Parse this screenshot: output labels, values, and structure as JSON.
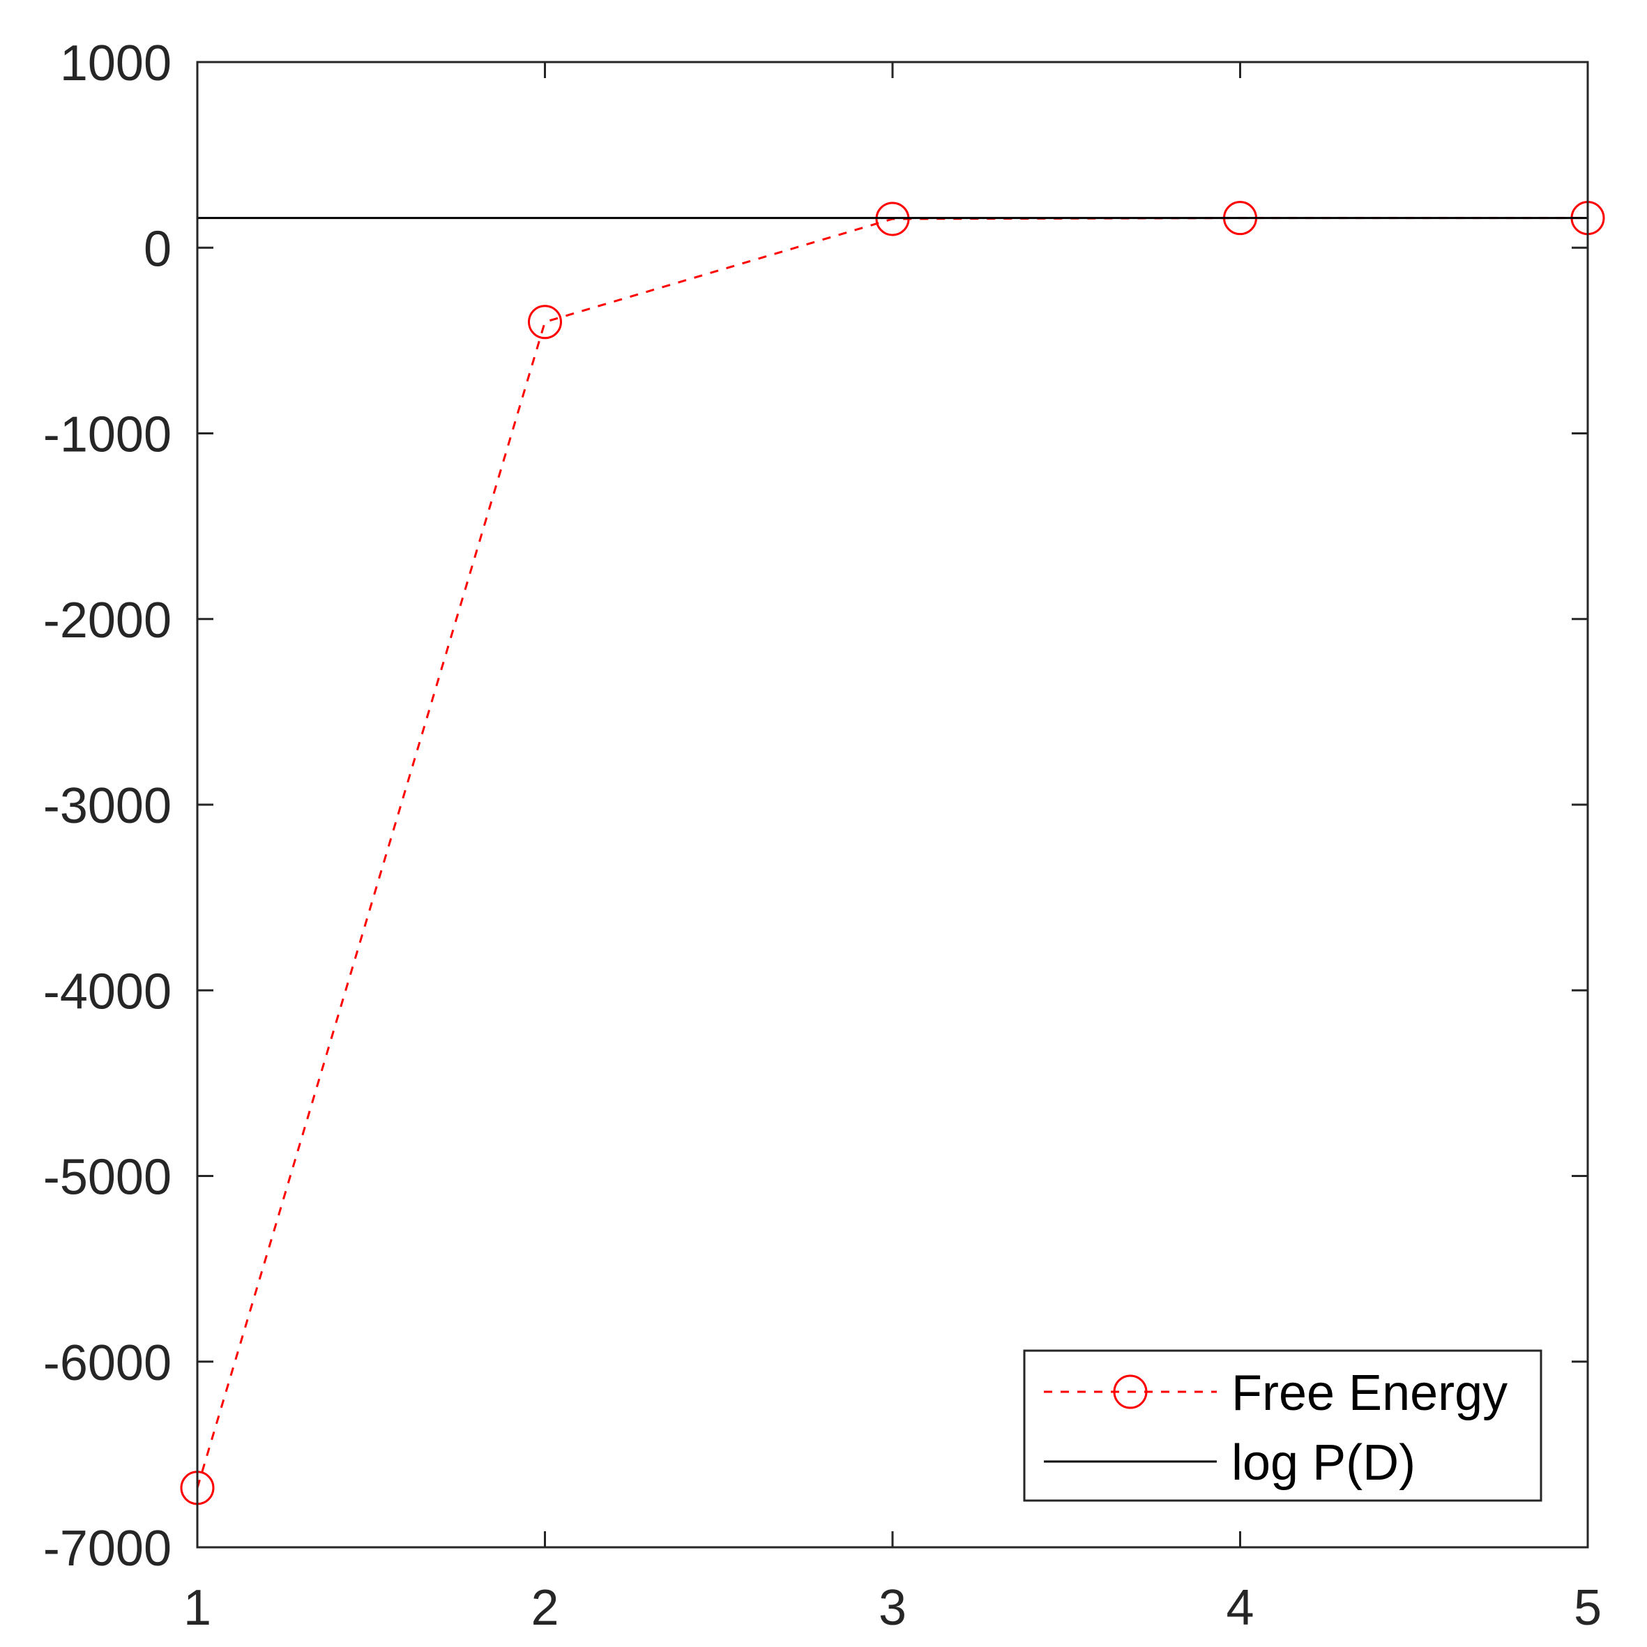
{
  "chart_data": {
    "type": "line",
    "x": [
      1,
      2,
      3,
      4,
      5
    ],
    "series": [
      {
        "name": "Free Energy",
        "values": [
          -6680,
          -400,
          155,
          160,
          160
        ],
        "color": "#ff0000",
        "line_style": "dashed",
        "marker": "circle"
      },
      {
        "name": "log P(D)",
        "values": [
          160,
          160,
          160,
          160,
          160
        ],
        "color": "#000000",
        "line_style": "solid",
        "marker": "none"
      }
    ],
    "xlim": [
      1,
      5
    ],
    "ylim": [
      -7000,
      1000
    ],
    "xticks": [
      1,
      2,
      3,
      4,
      5
    ],
    "yticks": [
      -7000,
      -6000,
      -5000,
      -4000,
      -3000,
      -2000,
      -1000,
      0,
      1000
    ],
    "xtick_labels": [
      "1",
      "2",
      "3",
      "4",
      "5"
    ],
    "ytick_labels": [
      "-7000",
      "-6000",
      "-5000",
      "-4000",
      "-3000",
      "-2000",
      "-1000",
      "0",
      "1000"
    ],
    "grid": false,
    "legend": {
      "position": "bottom-right",
      "entries": [
        "Free Energy",
        "log P(D)"
      ]
    }
  }
}
